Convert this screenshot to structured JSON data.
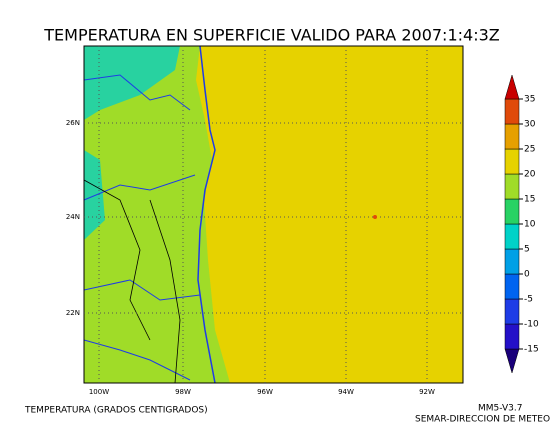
{
  "title": "TEMPERATURA EN SUPERFICIE VALIDO PARA 2007:1:4:3Z",
  "map": {
    "lat_labels": [
      "26N",
      "24N",
      "22N"
    ],
    "lon_labels": [
      "100W",
      "98W",
      "96W",
      "94W",
      "92W"
    ]
  },
  "colorbar": {
    "ticks": [
      -15,
      -10,
      -5,
      0,
      5,
      10,
      15,
      20,
      25,
      30,
      35
    ],
    "colors": [
      "#1a007a",
      "#2410c8",
      "#1e3ce6",
      "#0064f0",
      "#00a0e6",
      "#00d2c8",
      "#28d264",
      "#a0dc28",
      "#e6d200",
      "#e6a000",
      "#e04a0a",
      "#c80000"
    ]
  },
  "footer": {
    "left": "TEMPERATURA (GRADOS CENTIGRADOS)",
    "right_1": "MM5-V3.7",
    "right_2": "SEMAR-DIRECCION DE METEO"
  }
}
